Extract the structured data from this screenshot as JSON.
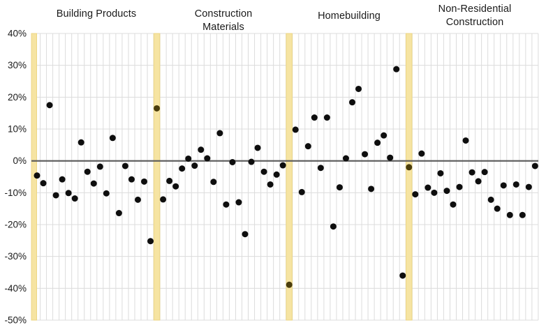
{
  "chart_data": {
    "type": "scatter",
    "title": "",
    "y_axis": {
      "unit": "%",
      "min": -50,
      "max": 40,
      "tick_step": 10,
      "tick_labels": [
        "40%",
        "30%",
        "20%",
        "10%",
        "0%",
        "-10%",
        "-20%",
        "-30%",
        "-40%",
        "-50%"
      ]
    },
    "zero_line": true,
    "grid": true,
    "legend": "none",
    "sections": [
      {
        "label": "Building Products",
        "values": [
          -4.6,
          -7.0,
          17.5,
          -10.8,
          -5.8,
          -10.1,
          -11.8,
          5.8,
          -3.4,
          -7.1,
          -1.8,
          -10.2,
          7.2,
          -16.4,
          -1.6,
          -5.8,
          -12.2,
          -6.5,
          -25.2
        ],
        "divider_point": 16.5
      },
      {
        "label": "Construction\nMaterials",
        "values": [
          -12.1,
          -6.3,
          -8.0,
          -2.4,
          0.7,
          -1.5,
          3.5,
          0.8,
          -6.6,
          8.7,
          -13.7,
          -0.4,
          -13.0,
          -23.0,
          -0.3,
          4.1,
          -3.4,
          -7.4,
          -4.3,
          -1.4
        ],
        "divider_point": -38.9
      },
      {
        "label": "Homebuilding",
        "values": [
          9.8,
          -9.8,
          4.6,
          13.6,
          -2.2,
          13.6,
          -20.6,
          -8.3,
          0.8,
          18.4,
          22.6,
          2.1,
          -8.8,
          5.7,
          8.0,
          1.0,
          28.8,
          -36.0
        ],
        "divider_point": -2.0
      },
      {
        "label": "Non-Residential\nConstruction",
        "values": [
          -10.5,
          2.3,
          -8.4,
          -10.0,
          -3.9,
          -9.4,
          -13.7,
          -8.2,
          6.4,
          -3.6,
          -6.4,
          -3.5,
          -12.2,
          -15.0,
          -7.7,
          -17.0,
          -7.4,
          -17.0,
          -8.2,
          -1.6
        ],
        "divider_point": null
      }
    ],
    "colors": {
      "background": "#ffffff",
      "grid": "#dcdcdc",
      "zero_line": "#595959",
      "point": "#0e0e0e",
      "divider_band": "#f6e4a2",
      "divider_band_edge": "#ecd685",
      "divider_point": "#4b3d0c",
      "tick_label": "#1a1a1a",
      "title": "#1a1a1a"
    }
  }
}
